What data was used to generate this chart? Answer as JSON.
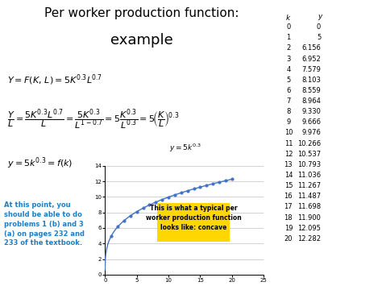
{
  "title_line1": "Per worker production function:",
  "title_line2": "example",
  "background_color": "#ffffff",
  "table_k": [
    0,
    1,
    2,
    3,
    4,
    5,
    6,
    7,
    8,
    9,
    10,
    11,
    12,
    13,
    14,
    15,
    16,
    17,
    18,
    19,
    20
  ],
  "table_y": [
    "0",
    "5",
    "6.156",
    "6.952",
    "7.579",
    "8.103",
    "8.559",
    "8.964",
    "9.330",
    "9.666",
    "9.976",
    "10.266",
    "10.537",
    "10.793",
    "11.036",
    "11.267",
    "11.487",
    "11.698",
    "11.900",
    "12.095",
    "12.282"
  ],
  "annotation_text": "This is what a typical per\nworker production function\nlooks like: concave",
  "annotation_bg": "#FFD700",
  "left_note_text": "At this point, you\nshould be able to do\nproblems 1 (b) and 3\n(a) on pages 232 and\n233 of the textbook.",
  "left_note_color": "#1F7EC2",
  "plot_xlim": [
    0,
    25
  ],
  "plot_ylim": [
    0,
    14
  ],
  "plot_xticks": [
    0,
    5,
    10,
    15,
    20,
    25
  ],
  "plot_yticks": [
    0,
    2,
    4,
    6,
    8,
    10,
    12,
    14
  ],
  "line_color": "#4472C4",
  "marker_color": "#4472C4",
  "grid_color": "#C0C0C0",
  "title_fontsize": 11,
  "title2_fontsize": 13,
  "formula_fontsize": 8,
  "table_fontsize": 6,
  "note_fontsize": 6
}
